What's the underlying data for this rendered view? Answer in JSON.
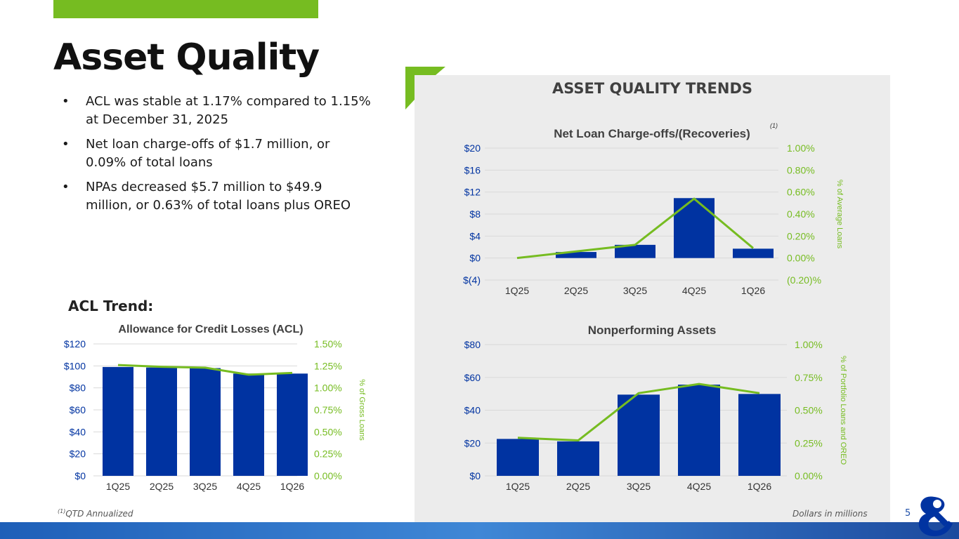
{
  "title": "Asset Quality",
  "bullets": [
    {
      "mark": "•",
      "text": "ACL was stable at 1.17% compared to 1.15% at December 31, 2025"
    },
    {
      "mark": "•",
      "text": "Net loan charge-offs of $1.7 million, or 0.09% of total loans"
    },
    {
      "mark": "•",
      "text": "NPAs decreased $5.7 million to $49.9 million, or 0.63% of total loans plus OREO"
    }
  ],
  "acl_trend_label": "ACL Trend:",
  "panel_title": "ASSET QUALITY TRENDS",
  "footnote": {
    "marker": "(1)",
    "text": "QTD Annualized"
  },
  "units_note": "Dollars in millions",
  "page_number": "5",
  "colors": {
    "bar": "#0033a1",
    "line": "#76bc21",
    "left_axis": "#0033a1",
    "right_axis": "#76bc21",
    "accent": "#76bc21"
  },
  "chart_data": [
    {
      "id": "acl",
      "type": "bar",
      "title": "Allowance for Credit Losses (ACL)",
      "categories": [
        "1Q25",
        "2Q25",
        "3Q25",
        "4Q25",
        "1Q26"
      ],
      "series": [
        {
          "name": "ACL ($M)",
          "axis": "left",
          "type": "bar",
          "values": [
            99,
            98.5,
            98,
            93,
            93
          ]
        },
        {
          "name": "% of Gross Loans",
          "axis": "right",
          "type": "line",
          "values": [
            1.26,
            1.24,
            1.23,
            1.15,
            1.17
          ]
        }
      ],
      "ylim": [
        0,
        120
      ],
      "yticks": [
        0,
        20,
        40,
        60,
        80,
        100,
        120
      ],
      "ytick_labels": [
        "$0",
        "$20",
        "$40",
        "$60",
        "$80",
        "$100",
        "$120"
      ],
      "y2lim": [
        0,
        1.5
      ],
      "y2ticks": [
        0,
        0.25,
        0.5,
        0.75,
        1.0,
        1.25,
        1.5
      ],
      "y2tick_labels": [
        "0.00%",
        "0.25%",
        "0.50%",
        "0.75%",
        "1.00%",
        "1.25%",
        "1.50%"
      ],
      "y2label": "% of Gross Loans"
    },
    {
      "id": "nco",
      "type": "bar",
      "title": "Net Loan Charge-offs/(Recoveries)",
      "title_note": "(1)",
      "categories": [
        "1Q25",
        "2Q25",
        "3Q25",
        "4Q25",
        "1Q26"
      ],
      "series": [
        {
          "name": "Net charge-offs ($M)",
          "axis": "left",
          "type": "bar",
          "values": [
            0,
            1.1,
            2.4,
            10.9,
            1.7
          ]
        },
        {
          "name": "% of Average Loans",
          "axis": "right",
          "type": "line",
          "values": [
            0.0,
            0.06,
            0.12,
            0.54,
            0.09
          ]
        }
      ],
      "ylim": [
        -4,
        20
      ],
      "yticks": [
        -4,
        0,
        4,
        8,
        12,
        16,
        20
      ],
      "ytick_labels": [
        "$(4)",
        "$0",
        "$4",
        "$8",
        "$12",
        "$16",
        "$20"
      ],
      "y2lim": [
        -0.2,
        1.0
      ],
      "y2ticks": [
        -0.2,
        0,
        0.2,
        0.4,
        0.6,
        0.8,
        1.0
      ],
      "y2tick_labels": [
        "(0.20)%",
        "0.00%",
        "0.20%",
        "0.40%",
        "0.60%",
        "0.80%",
        "1.00%"
      ],
      "y2label": "% of Average Loans"
    },
    {
      "id": "npa",
      "type": "bar",
      "title": "Nonperforming Assets",
      "categories": [
        "1Q25",
        "2Q25",
        "3Q25",
        "4Q25",
        "1Q26"
      ],
      "series": [
        {
          "name": "NPAs ($M)",
          "axis": "left",
          "type": "bar",
          "values": [
            22.5,
            21,
            49.5,
            55.6,
            49.9
          ]
        },
        {
          "name": "% of Portfolio Loans and OREO",
          "axis": "right",
          "type": "line",
          "values": [
            0.29,
            0.27,
            0.63,
            0.7,
            0.63
          ]
        }
      ],
      "ylim": [
        0,
        80
      ],
      "yticks": [
        0,
        20,
        40,
        60,
        80
      ],
      "ytick_labels": [
        "$0",
        "$20",
        "$40",
        "$60",
        "$80"
      ],
      "y2lim": [
        0,
        1.0
      ],
      "y2ticks": [
        0,
        0.25,
        0.5,
        0.75,
        1.0
      ],
      "y2tick_labels": [
        "0.00%",
        "0.25%",
        "0.50%",
        "0.75%",
        "1.00%"
      ],
      "y2label": "% of Portfolio Loans and OREO"
    }
  ]
}
